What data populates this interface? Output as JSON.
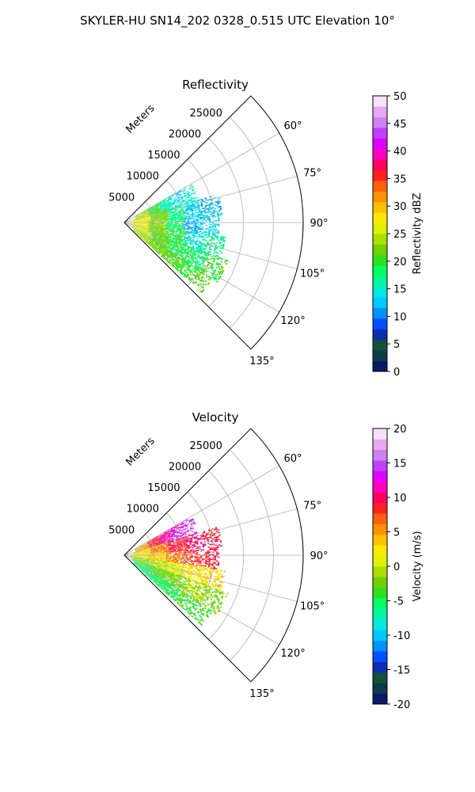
{
  "figure": {
    "title": "SKYLER-HU  SN14_202  0328_0.515 UTC Elevation 10°"
  },
  "chart_data": [
    {
      "type": "heatmap",
      "projection": "polar-sector",
      "title": "Reflectivity",
      "range_label": "Meters",
      "range_ticks": [
        "5000",
        "10000",
        "15000",
        "20000",
        "25000"
      ],
      "range_max": 30000,
      "azimuth_range_deg": [
        45,
        135
      ],
      "azimuth_ticks": [
        "60°",
        "75°",
        "90°",
        "105°",
        "120°",
        "135°"
      ],
      "grid": true,
      "colorbar": {
        "label": "Reflectivity dBZ",
        "range": [
          0,
          50
        ],
        "ticks": [
          "0",
          "5",
          "10",
          "15",
          "20",
          "25",
          "30",
          "35",
          "40",
          "45",
          "50"
        ],
        "colors": [
          "#0a1a66",
          "#0d3b4a",
          "#14503a",
          "#0a2fb0",
          "#0050ff",
          "#0090ff",
          "#00c8ff",
          "#00e8e0",
          "#00f5a0",
          "#00ff60",
          "#30e020",
          "#70d000",
          "#a8e000",
          "#e0f000",
          "#ffe800",
          "#ffc000",
          "#ff9000",
          "#ff6010",
          "#ff2020",
          "#ff0060",
          "#ff00c0",
          "#e000ff",
          "#c040ff",
          "#d080f0",
          "#e8a8f0",
          "#f8e0f8"
        ]
      },
      "lobes": [
        {
          "az_from": 60,
          "az_to": 73,
          "r_from": 2000,
          "r_to": 13000,
          "values": [
            24,
            20,
            16,
            14,
            15
          ]
        },
        {
          "az_from": 73,
          "az_to": 86,
          "r_from": 1500,
          "r_to": 16500,
          "values": [
            26,
            22,
            17,
            13,
            12
          ]
        },
        {
          "az_from": 86,
          "az_to": 98,
          "r_from": 1000,
          "r_to": 16000,
          "values": [
            27,
            23,
            18,
            12,
            14
          ]
        },
        {
          "az_from": 98,
          "az_to": 110,
          "r_from": 1000,
          "r_to": 17000,
          "values": [
            26,
            22,
            19,
            15,
            17
          ]
        },
        {
          "az_from": 110,
          "az_to": 122,
          "r_from": 1500,
          "r_to": 18500,
          "values": [
            25,
            21,
            19,
            18,
            20
          ]
        },
        {
          "az_from": 122,
          "az_to": 132,
          "r_from": 2000,
          "r_to": 17500,
          "values": [
            24,
            22,
            21,
            20,
            22
          ]
        }
      ]
    },
    {
      "type": "heatmap",
      "projection": "polar-sector",
      "title": "Velocity",
      "range_label": "Meters",
      "range_ticks": [
        "5000",
        "10000",
        "15000",
        "20000",
        "25000"
      ],
      "range_max": 30000,
      "azimuth_range_deg": [
        45,
        135
      ],
      "azimuth_ticks": [
        "60°",
        "75°",
        "90°",
        "105°",
        "120°",
        "135°"
      ],
      "grid": true,
      "colorbar": {
        "label": "Velocity (m/s)",
        "range": [
          -20,
          20
        ],
        "ticks": [
          "-20",
          "-15",
          "-10",
          "-5",
          "0",
          "5",
          "10",
          "15",
          "20"
        ],
        "colors": [
          "#0a1a66",
          "#0d3b4a",
          "#14503a",
          "#0a2fb0",
          "#0050ff",
          "#0090ff",
          "#00c8ff",
          "#00e8e0",
          "#00f5a0",
          "#00ff60",
          "#30e020",
          "#70d000",
          "#a8e000",
          "#e0f000",
          "#ffe800",
          "#ffc000",
          "#ff9000",
          "#ff6010",
          "#ff2020",
          "#ff0060",
          "#ff00c0",
          "#e000ff",
          "#c040ff",
          "#d080f0",
          "#e8a8f0",
          "#f8e0f8"
        ]
      },
      "lobes": [
        {
          "az_from": 60,
          "az_to": 73,
          "r_from": 2000,
          "r_to": 13000,
          "values": [
            5,
            9,
            11,
            13,
            15
          ]
        },
        {
          "az_from": 73,
          "az_to": 86,
          "r_from": 1500,
          "r_to": 16500,
          "values": [
            3,
            6,
            9,
            10,
            9
          ]
        },
        {
          "az_from": 86,
          "az_to": 98,
          "r_from": 1000,
          "r_to": 16000,
          "values": [
            1,
            3,
            6,
            8,
            9
          ]
        },
        {
          "az_from": 98,
          "az_to": 110,
          "r_from": 1000,
          "r_to": 17000,
          "values": [
            -1,
            0,
            1,
            2,
            3
          ]
        },
        {
          "az_from": 110,
          "az_to": 122,
          "r_from": 1500,
          "r_to": 18500,
          "values": [
            -4,
            -3,
            -2,
            -1,
            -2
          ]
        },
        {
          "az_from": 122,
          "az_to": 132,
          "r_from": 2000,
          "r_to": 17500,
          "values": [
            -6,
            -5,
            -5,
            -4,
            -4
          ]
        }
      ]
    }
  ]
}
